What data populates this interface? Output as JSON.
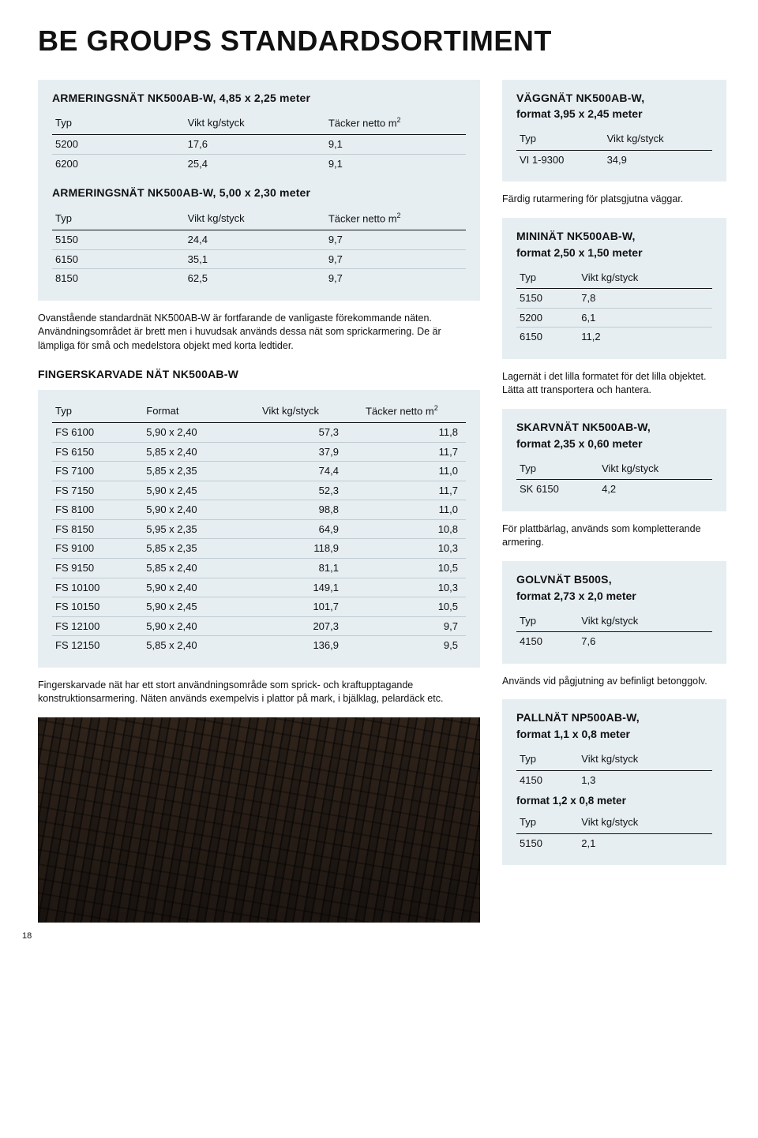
{
  "page": {
    "title": "BE GROUPS STANDARDSORTIMENT",
    "number": "18"
  },
  "colors": {
    "box_bg": "#e6eef2",
    "text": "#111111",
    "rule": "#111111",
    "row_rule": "#c0ccd2",
    "page_bg": "#ffffff"
  },
  "left": {
    "table1": {
      "title": "ARMERINGSNÄT NK500AB-W, 4,85 x 2,25 meter",
      "columns": [
        "Typ",
        "Vikt kg/styck",
        "Täcker netto m²"
      ],
      "rows": [
        [
          "5200",
          "17,6",
          "9,1"
        ],
        [
          "6200",
          "25,4",
          "9,1"
        ]
      ]
    },
    "table2": {
      "title": "ARMERINGSNÄT NK500AB-W, 5,00 x 2,30 meter",
      "columns": [
        "Typ",
        "Vikt kg/styck",
        "Täcker netto m²"
      ],
      "rows": [
        [
          "5150",
          "24,4",
          "9,7"
        ],
        [
          "6150",
          "35,1",
          "9,7"
        ],
        [
          "8150",
          "62,5",
          "9,7"
        ]
      ]
    },
    "para1": "Ovanstående standardnät NK500AB-W är fortfarande de vanligaste förekommande näten. Användningsområdet är brett men i huvudsak används dessa nät som sprickarmering. De är lämpliga för små och medelstora objekt med korta ledtider.",
    "table3": {
      "title": "FINGERSKARVADE NÄT NK500AB-W",
      "columns": [
        "Typ",
        "Format",
        "Vikt kg/styck",
        "Täcker netto m²"
      ],
      "rows": [
        [
          "FS 6100",
          "5,90 x 2,40",
          "57,3",
          "11,8"
        ],
        [
          "FS 6150",
          "5,85 x 2,40",
          "37,9",
          "11,7"
        ],
        [
          "FS 7100",
          "5,85 x 2,35",
          "74,4",
          "11,0"
        ],
        [
          "FS 7150",
          "5,90 x 2,45",
          "52,3",
          "11,7"
        ],
        [
          "FS 8100",
          "5,90 x 2,40",
          "98,8",
          "11,0"
        ],
        [
          "FS 8150",
          "5,95 x 2,35",
          "64,9",
          "10,8"
        ],
        [
          "FS 9100",
          "5,85 x 2,35",
          "118,9",
          "10,3"
        ],
        [
          "FS 9150",
          "5,85 x 2,40",
          "81,1",
          "10,5"
        ],
        [
          "FS 10100",
          "5,90 x 2,40",
          "149,1",
          "10,3"
        ],
        [
          "FS 10150",
          "5,90 x 2,45",
          "101,7",
          "10,5"
        ],
        [
          "FS 12100",
          "5,90 x 2,40",
          "207,3",
          "9,7"
        ],
        [
          "FS 12150",
          "5,85 x 2,40",
          "136,9",
          "9,5"
        ]
      ]
    },
    "para2": "Fingerskarvade nät har ett stort användningsområde som sprick- och kraftupptagande konstruktionsarmering. Näten används exempelvis i plattor på mark, i bjälklag, pelardäck etc."
  },
  "right": {
    "vaggnat": {
      "title": "VÄGGNÄT NK500AB-W,",
      "subtitle": "format 3,95 x 2,45 meter",
      "columns": [
        "Typ",
        "Vikt kg/styck"
      ],
      "rows": [
        [
          "VI 1-9300",
          "34,9"
        ]
      ],
      "note": "Färdig rutarmering för platsgjutna väggar."
    },
    "mininat": {
      "title": "MININÄT NK500AB-W,",
      "subtitle": "format 2,50 x 1,50 meter",
      "columns": [
        "Typ",
        "Vikt kg/styck"
      ],
      "rows": [
        [
          "5150",
          "7,8"
        ],
        [
          "5200",
          "6,1"
        ],
        [
          "6150",
          "11,2"
        ]
      ],
      "note": "Lagernät i det lilla formatet för det lilla objektet. Lätta att transportera och hantera."
    },
    "skarvnat": {
      "title": "SKARVNÄT NK500AB-W,",
      "subtitle": "format 2,35 x 0,60 meter",
      "columns": [
        "Typ",
        "Vikt kg/styck"
      ],
      "rows": [
        [
          "SK 6150",
          "4,2"
        ]
      ],
      "note": "För plattbärlag, används som kompletterande armering."
    },
    "golvnat": {
      "title": "GOLVNÄT B500S,",
      "subtitle": "format 2,73 x 2,0 meter",
      "columns": [
        "Typ",
        "Vikt kg/styck"
      ],
      "rows": [
        [
          "4150",
          "7,6"
        ]
      ],
      "note": "Används vid pågjutning av befinligt betonggolv."
    },
    "pallnat": {
      "title": "PALLNÄT NP500AB-W,",
      "subtitle": "format 1,1 x 0,8 meter",
      "columns": [
        "Typ",
        "Vikt kg/styck"
      ],
      "rows1": [
        [
          "4150",
          "1,3"
        ]
      ],
      "subtitle2": "format 1,2 x 0,8 meter",
      "rows2": [
        [
          "5150",
          "2,1"
        ]
      ]
    }
  }
}
